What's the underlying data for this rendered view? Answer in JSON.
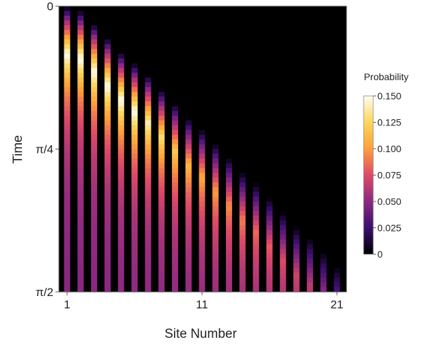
{
  "chart_data": {
    "type": "heatmap",
    "xlabel": "Site Number",
    "ylabel": "Time",
    "x_ticks": [
      "1",
      "11",
      "21"
    ],
    "y_ticks": [
      "0",
      "π/4",
      "π/2"
    ],
    "sites": [
      1,
      2,
      3,
      4,
      5,
      6,
      7,
      8,
      9,
      10,
      11,
      12,
      13,
      14,
      15,
      16,
      17,
      18,
      19,
      20,
      21
    ],
    "colorbar": {
      "title": "Probability",
      "ticks": [
        "0",
        "0.025",
        "0.050",
        "0.075",
        "0.100",
        "0.125",
        "0.150"
      ],
      "range": [
        0,
        0.15
      ],
      "colors": [
        "#000000",
        "#3b0f6f",
        "#8c2981",
        "#de4968",
        "#fe9f3a",
        "#fcd65a",
        "#fffdf4"
      ]
    },
    "site_onset": [
      0.0,
      0.015,
      0.06,
      0.11,
      0.16,
      0.2,
      0.24,
      0.29,
      0.34,
      0.39,
      0.43,
      0.48,
      0.53,
      0.58,
      0.62,
      0.67,
      0.72,
      0.77,
      0.81,
      0.86,
      0.91
    ],
    "site_peak": [
      0.15,
      0.15,
      0.15,
      0.15,
      0.15,
      0.15,
      0.14,
      0.13,
      0.12,
      0.11,
      0.105,
      0.1,
      0.095,
      0.09,
      0.085,
      0.08,
      0.075,
      0.07,
      0.065,
      0.06,
      0.055
    ],
    "final_value": 0.048
  }
}
